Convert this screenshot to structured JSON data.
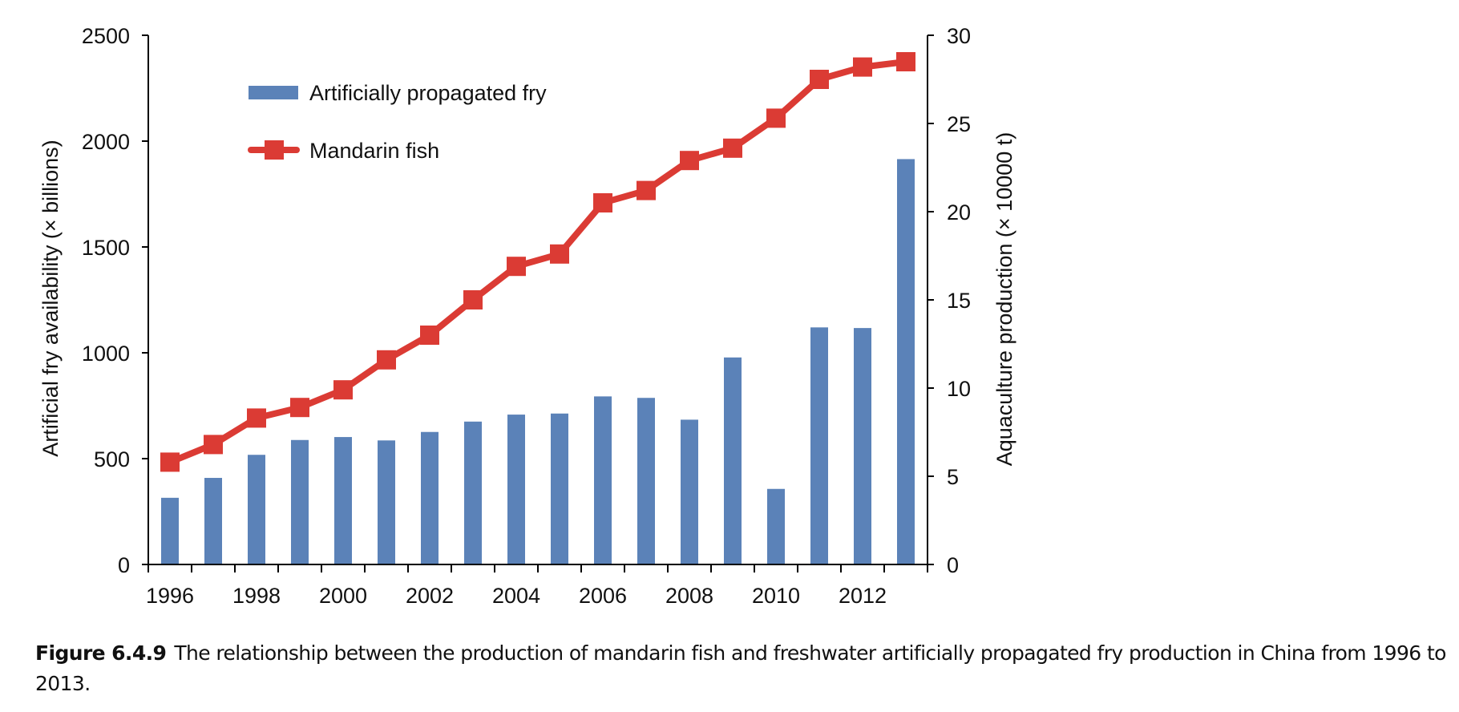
{
  "chart_data": {
    "type": "bar",
    "title": "",
    "categories": [
      "1996",
      "1997",
      "1998",
      "1999",
      "2000",
      "2001",
      "2002",
      "2003",
      "2004",
      "2005",
      "2006",
      "2007",
      "2008",
      "2009",
      "2010",
      "2011",
      "2012",
      "2013"
    ],
    "x_tick_labels": [
      "1996",
      "1998",
      "2000",
      "2002",
      "2004",
      "2006",
      "2008",
      "2010",
      "2012"
    ],
    "xlabel": "",
    "ylabel": "Artificial fry availability (× billions)",
    "ylabel_right": "Aquaculture production (× 10000 t)",
    "ylim": [
      0,
      2500
    ],
    "ylim_right": [
      0,
      30
    ],
    "y_ticks": [
      "0",
      "500",
      "1000",
      "1500",
      "2000",
      "2500"
    ],
    "y_ticks_right": [
      "0",
      "5",
      "10",
      "15",
      "20",
      "25",
      "30"
    ],
    "grid": false,
    "legend_position": "top-left",
    "series": [
      {
        "name": "Artificially propagated fry",
        "type": "bar",
        "axis": "left",
        "color": "#5b82b8",
        "values": [
          315,
          409,
          518,
          588,
          602,
          586,
          626,
          675,
          708,
          713,
          794,
          787,
          684,
          978,
          357,
          1120,
          1117,
          1915
        ]
      },
      {
        "name": "Mandarin fish",
        "type": "line",
        "marker": "square",
        "axis": "right",
        "color": "#db3b34",
        "values": [
          5.8,
          6.8,
          8.3,
          8.9,
          9.9,
          11.6,
          13.0,
          15.0,
          16.9,
          17.6,
          20.5,
          21.2,
          22.9,
          23.6,
          25.3,
          27.5,
          28.2,
          28.5
        ]
      }
    ]
  },
  "caption": {
    "label": "Figure 6.4.9",
    "text": "The relationship between the production of mandarin fish and freshwater artificially propagated fry production in China from 1996 to 2013."
  }
}
